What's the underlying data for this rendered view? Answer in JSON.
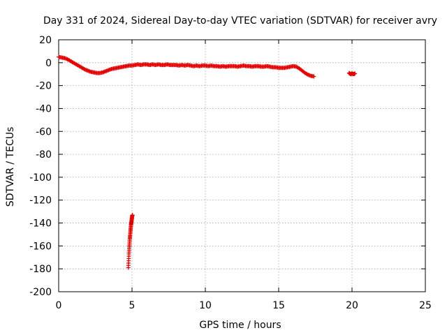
{
  "chart_data": {
    "type": "scatter",
    "title": "Day 331 of 2024, Sidereal Day-to-day VTEC variation (SDTVAR) for receiver avry",
    "xlabel": "GPS time / hours",
    "ylabel": "SDTVAR / TECUs",
    "xlim": [
      0,
      25
    ],
    "ylim": [
      -200,
      20
    ],
    "xticks": [
      0,
      5,
      10,
      15,
      20,
      25
    ],
    "yticks": [
      20,
      0,
      -20,
      -40,
      -60,
      -80,
      -100,
      -120,
      -140,
      -160,
      -180,
      -200
    ],
    "grid": true,
    "marker": "plus",
    "color": "#e00000",
    "series": [
      {
        "name": "main trace",
        "x": [
          0.0,
          0.2,
          0.4,
          0.6,
          0.8,
          1.0,
          1.2,
          1.4,
          1.6,
          1.8,
          2.0,
          2.2,
          2.4,
          2.6,
          2.8,
          3.0,
          3.2,
          3.4,
          3.6,
          3.8,
          4.0,
          4.2,
          4.4,
          4.6,
          4.8,
          5.0,
          5.2,
          5.4,
          5.6,
          5.8,
          6.0,
          6.2,
          6.4,
          6.6,
          6.8,
          7.0,
          7.2,
          7.4,
          7.6,
          7.8,
          8.0,
          8.2,
          8.4,
          8.6,
          8.8,
          9.0,
          9.2,
          9.4,
          9.6,
          9.8,
          10.0,
          10.2,
          10.4,
          10.6,
          10.8,
          11.0,
          11.2,
          11.4,
          11.6,
          11.8,
          12.0,
          12.2,
          12.4,
          12.6,
          12.8,
          13.0,
          13.2,
          13.4,
          13.6,
          13.8,
          14.0,
          14.2,
          14.4,
          14.6,
          14.8,
          15.0,
          15.2,
          15.4,
          15.6,
          15.8,
          16.0,
          16.2,
          16.4,
          16.6,
          16.8,
          17.0,
          17.2,
          17.4
        ],
        "y": [
          5,
          4.5,
          4,
          3,
          1.5,
          0,
          -1.5,
          -3,
          -4.5,
          -6,
          -7,
          -8,
          -8.5,
          -9,
          -9,
          -8.5,
          -7.5,
          -6.5,
          -5.5,
          -5,
          -4.5,
          -4,
          -3.5,
          -3,
          -2.5,
          -2.5,
          -2,
          -1.5,
          -2,
          -1.5,
          -1.5,
          -2,
          -1.5,
          -2,
          -1.5,
          -2,
          -2,
          -1.5,
          -2,
          -2,
          -2,
          -2.5,
          -2,
          -2.5,
          -2,
          -2.5,
          -3,
          -2.5,
          -3,
          -2.5,
          -2.5,
          -3,
          -2.5,
          -3,
          -3,
          -3.5,
          -3,
          -3.5,
          -3,
          -3,
          -3,
          -3.5,
          -3,
          -2.5,
          -3,
          -3,
          -3.5,
          -3,
          -3,
          -3.5,
          -3.5,
          -3,
          -3.5,
          -4,
          -4,
          -4.5,
          -4.5,
          -4.5,
          -4,
          -3.5,
          -3,
          -3.5,
          -5,
          -7,
          -9,
          -10.5,
          -11.5,
          -12
        ]
      },
      {
        "name": "descending arc",
        "x": [
          4.75,
          4.77,
          4.79,
          4.81,
          4.83,
          4.85,
          4.87,
          4.89,
          4.91,
          4.93,
          4.95,
          4.97,
          4.99,
          5.01,
          5.03
        ],
        "y": [
          -179,
          -173,
          -167,
          -162,
          -158,
          -154,
          -151,
          -148,
          -145,
          -142,
          -140,
          -138,
          -136,
          -134,
          -133
        ]
      },
      {
        "name": "late arc",
        "x": [
          19.8,
          19.9,
          20.0,
          20.1,
          20.2
        ],
        "y": [
          -9,
          -10,
          -9.5,
          -10,
          -9.5
        ]
      }
    ]
  }
}
